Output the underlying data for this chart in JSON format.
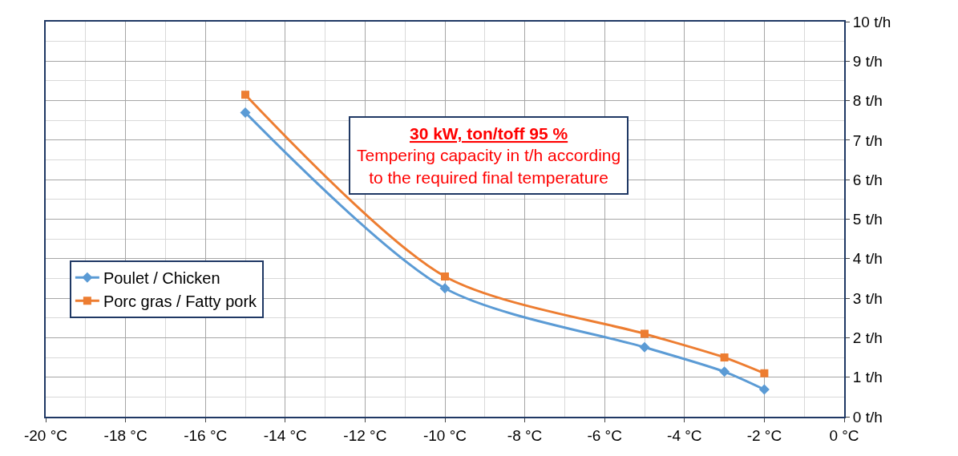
{
  "chart_data": {
    "type": "line",
    "annotations": [
      "30 kW, ton/toff 95 %",
      "Tempering capacity in t/h according\nto the required final temperature"
    ],
    "x": [
      -15,
      -10,
      -5,
      -3,
      -2
    ],
    "series": [
      {
        "name": "Poulet / Chicken",
        "color": "#5b9bd5",
        "marker": "diamond",
        "values": [
          7.7,
          3.25,
          1.76,
          1.14,
          0.69
        ]
      },
      {
        "name": "Porc gras / Fatty pork",
        "color": "#ed7d31",
        "marker": "square",
        "values": [
          8.15,
          3.55,
          2.1,
          1.5,
          1.1
        ]
      }
    ],
    "xlim": [
      -20,
      0
    ],
    "xticks": [
      {
        "value": -20,
        "label": "-20 °C"
      },
      {
        "value": -18,
        "label": "-18 °C"
      },
      {
        "value": -16,
        "label": "-16 °C"
      },
      {
        "value": -14,
        "label": "-14 °C"
      },
      {
        "value": -12,
        "label": "-12 °C"
      },
      {
        "value": -10,
        "label": "-10 °C"
      },
      {
        "value": -8,
        "label": "-8 °C"
      },
      {
        "value": -6,
        "label": "-6 °C"
      },
      {
        "value": -4,
        "label": "-4 °C"
      },
      {
        "value": -2,
        "label": "-2 °C"
      },
      {
        "value": 0,
        "label": "0 °C"
      }
    ],
    "ylim": [
      0,
      10
    ],
    "yticks": [
      {
        "value": 0,
        "label": "0 t/h"
      },
      {
        "value": 1,
        "label": "1 t/h"
      },
      {
        "value": 2,
        "label": "2 t/h"
      },
      {
        "value": 3,
        "label": "3 t/h"
      },
      {
        "value": 4,
        "label": "4 t/h"
      },
      {
        "value": 5,
        "label": "5 t/h"
      },
      {
        "value": 6,
        "label": "6 t/h"
      },
      {
        "value": 7,
        "label": "7 t/h"
      },
      {
        "value": 8,
        "label": "8 t/h"
      },
      {
        "value": 9,
        "label": "9 t/h"
      },
      {
        "value": 10,
        "label": "10 t/h"
      }
    ],
    "grid": true,
    "legend": "bottom left",
    "line_style": "solid"
  }
}
